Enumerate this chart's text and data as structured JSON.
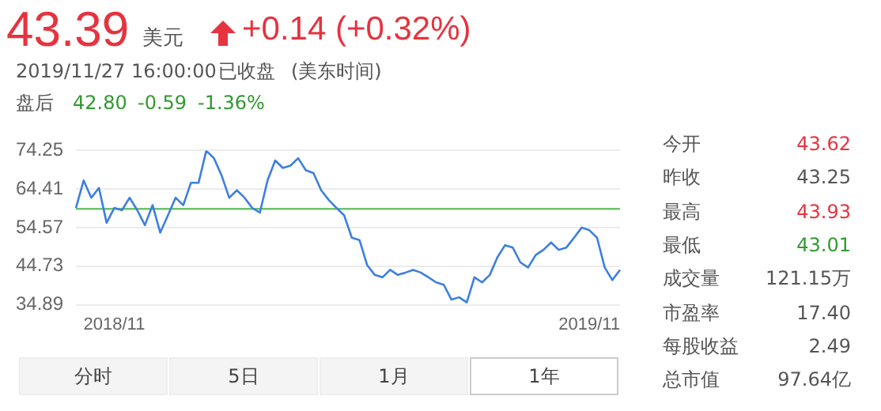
{
  "chart_data": {
    "type": "line",
    "categories": [
      null,
      null,
      null,
      null,
      null,
      "2018/11",
      null,
      null,
      null,
      null,
      null,
      null,
      null,
      null,
      null,
      null,
      null,
      null,
      null,
      null,
      null,
      null,
      null,
      null,
      null,
      null,
      null,
      null,
      null,
      null,
      null,
      null,
      null,
      null,
      null,
      null,
      null,
      null,
      null,
      null,
      null,
      null,
      null,
      null,
      null,
      null,
      null,
      null,
      null,
      null,
      null,
      null,
      null,
      null,
      null,
      null,
      null,
      null,
      null,
      null,
      null,
      null,
      null,
      null,
      null,
      null,
      null,
      "2019/11",
      null,
      null,
      null,
      null
    ],
    "series": [
      {
        "color": "#3d7fe0",
        "values": [
          59.6,
          66.6,
          62.2,
          64.7,
          55.8,
          59.6,
          59.0,
          62.2,
          59.0,
          55.2,
          60.3,
          53.3,
          57.7,
          62.2,
          60.3,
          66.0,
          66.0,
          74.2,
          72.3,
          67.9,
          62.2,
          64.1,
          62.2,
          59.6,
          58.4,
          66.6,
          71.7,
          69.8,
          70.4,
          72.3,
          69.2,
          68.5,
          64.1,
          61.6,
          59.6,
          57.7,
          52.0,
          51.4,
          45.0,
          42.5,
          41.9,
          43.8,
          42.5,
          43.1,
          43.8,
          43.1,
          41.9,
          40.6,
          40.0,
          36.2,
          36.8,
          35.5,
          41.9,
          40.6,
          42.5,
          47.0,
          50.1,
          49.5,
          45.7,
          44.4,
          47.6,
          48.9,
          50.8,
          48.9,
          49.5,
          52.0,
          54.6,
          53.9,
          52.0,
          44.4,
          41.2,
          43.8
        ]
      }
    ],
    "ylim": [
      34.89,
      74.25
    ],
    "yticks": [
      34.89,
      44.73,
      54.57,
      64.41,
      74.25
    ],
    "grid": "y",
    "marker": "none",
    "line_style": "solid",
    "legend": false,
    "ref_lines": [
      {
        "axis": "y",
        "value": 59.35,
        "color": "#6cc26c"
      }
    ],
    "annotations": [
      "43.39",
      "美元",
      "+0.14 (+0.32%)",
      "2019/11/27 16:00:00",
      "已收盘",
      "(美东时间)",
      "盘后",
      "42.80",
      "-0.59",
      "-1.36%",
      "今开",
      "43.62",
      "昨收",
      "43.25",
      "最高",
      "43.93",
      "最低",
      "43.01",
      "成交量",
      "121.15万",
      "市盈率",
      "17.40",
      "每股收益",
      "2.49",
      "总市值",
      "97.64亿",
      "分时",
      "5日",
      "1月",
      "1年"
    ]
  }
}
